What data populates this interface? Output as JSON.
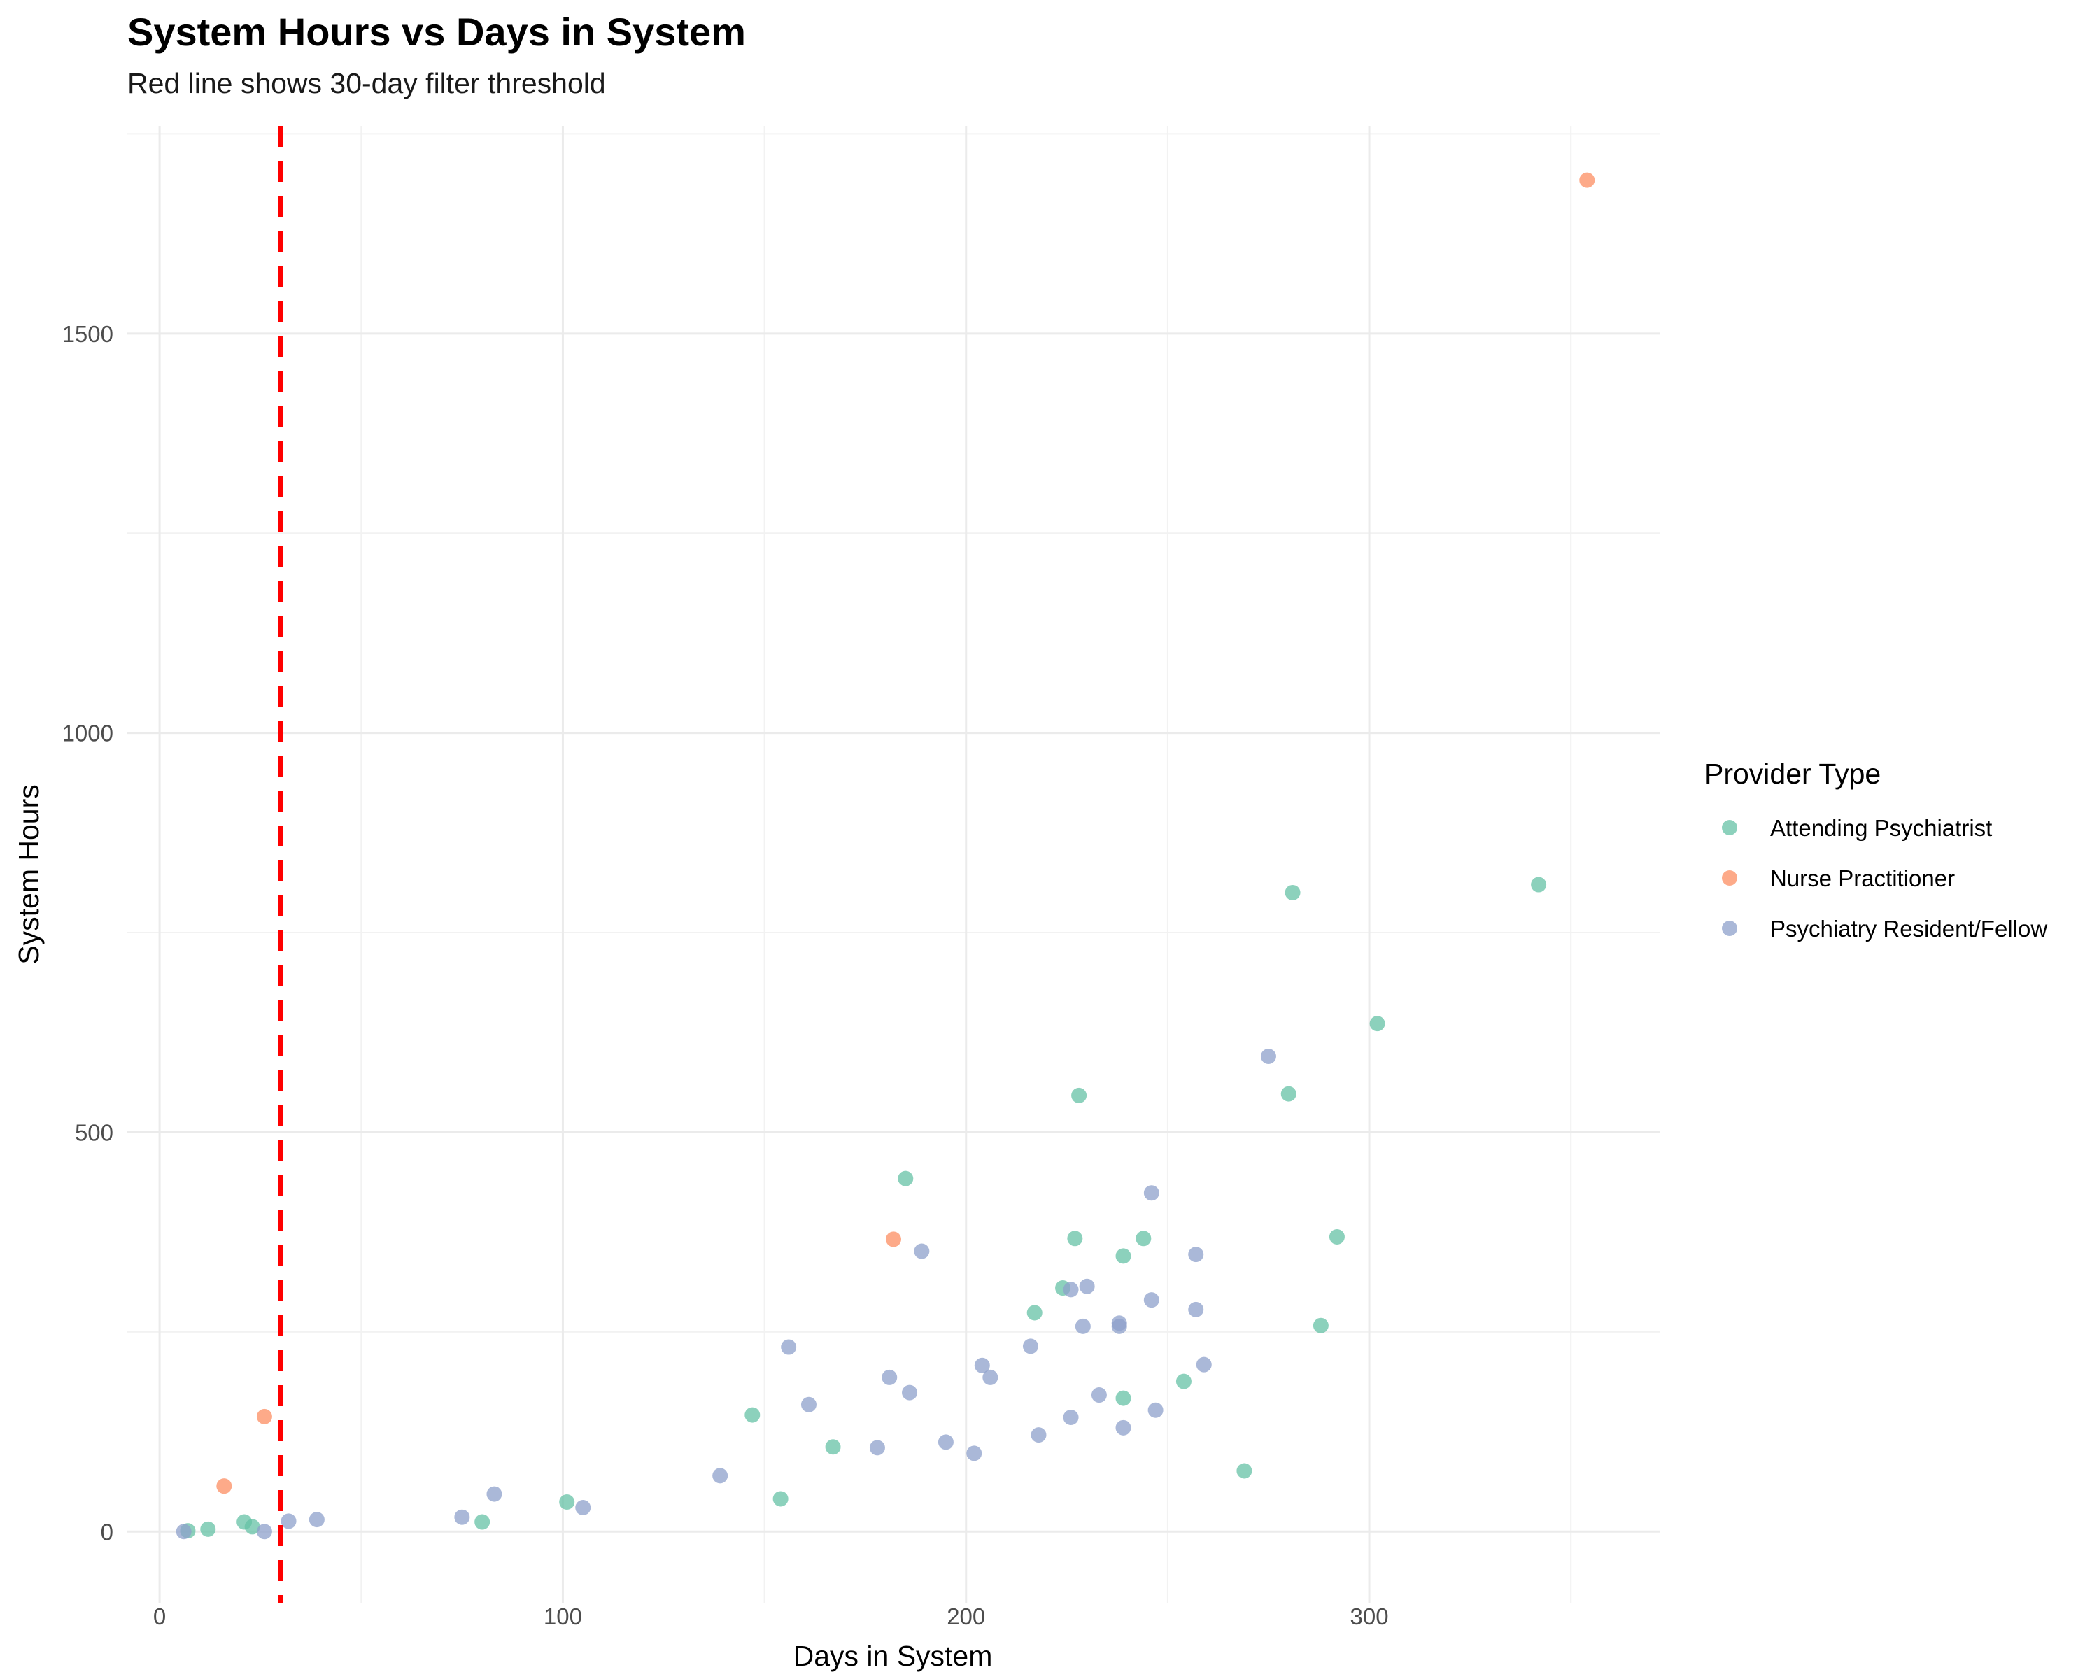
{
  "chart_data": {
    "type": "scatter",
    "title": "System Hours vs Days in System",
    "subtitle": "Red line shows 30-day filter threshold",
    "xlabel": "Days in System",
    "ylabel": "System Hours",
    "xlim": [
      -8,
      372
    ],
    "ylim": [
      -90,
      1760
    ],
    "x_ticks": [
      0,
      100,
      200,
      300
    ],
    "y_ticks": [
      0,
      500,
      1000,
      1500
    ],
    "x_minor": [
      50,
      150,
      250,
      350
    ],
    "y_minor": [
      250,
      750,
      1250,
      1750
    ],
    "grid": true,
    "threshold_line": {
      "x": 30,
      "color": "#ff0000",
      "style": "dashed"
    },
    "legend": {
      "title": "Provider Type",
      "position": "right"
    },
    "series": [
      {
        "name": "Attending Psychiatrist",
        "color": "#66c2a5",
        "points": [
          [
            7,
            1
          ],
          [
            12,
            3
          ],
          [
            21,
            12
          ],
          [
            23,
            6
          ],
          [
            80,
            12
          ],
          [
            101,
            37
          ],
          [
            147,
            146
          ],
          [
            154,
            41
          ],
          [
            167,
            106
          ],
          [
            185,
            442
          ],
          [
            217,
            274
          ],
          [
            224,
            305
          ],
          [
            227,
            367
          ],
          [
            228,
            546
          ],
          [
            239,
            345
          ],
          [
            239,
            167
          ],
          [
            244,
            367
          ],
          [
            254,
            188
          ],
          [
            269,
            76
          ],
          [
            280,
            548
          ],
          [
            281,
            800
          ],
          [
            288,
            258
          ],
          [
            292,
            369
          ],
          [
            302,
            636
          ],
          [
            342,
            810
          ]
        ]
      },
      {
        "name": "Nurse Practitioner",
        "color": "#fc8d62",
        "points": [
          [
            16,
            57
          ],
          [
            26,
            144
          ],
          [
            182,
            366
          ],
          [
            354,
            1692
          ]
        ]
      },
      {
        "name": "Psychiatry Resident/Fellow",
        "color": "#8da0cb",
        "points": [
          [
            6,
            0
          ],
          [
            26,
            0
          ],
          [
            32,
            13
          ],
          [
            39,
            15
          ],
          [
            75,
            18
          ],
          [
            83,
            47
          ],
          [
            105,
            30
          ],
          [
            139,
            70
          ],
          [
            156,
            231
          ],
          [
            161,
            159
          ],
          [
            178,
            105
          ],
          [
            181,
            193
          ],
          [
            186,
            174
          ],
          [
            189,
            351
          ],
          [
            195,
            112
          ],
          [
            202,
            98
          ],
          [
            204,
            208
          ],
          [
            206,
            193
          ],
          [
            216,
            232
          ],
          [
            218,
            121
          ],
          [
            226,
            143
          ],
          [
            226,
            303
          ],
          [
            229,
            257
          ],
          [
            230,
            307
          ],
          [
            233,
            171
          ],
          [
            238,
            257
          ],
          [
            238,
            261
          ],
          [
            239,
            130
          ],
          [
            246,
            290
          ],
          [
            246,
            424
          ],
          [
            247,
            152
          ],
          [
            257,
            278
          ],
          [
            257,
            347
          ],
          [
            259,
            209
          ],
          [
            275,
            595
          ]
        ]
      }
    ]
  }
}
